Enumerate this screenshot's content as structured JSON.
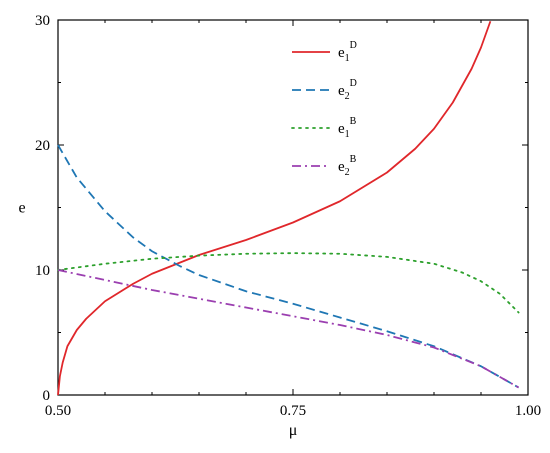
{
  "chart_data": {
    "type": "line",
    "title": "",
    "xlabel": "μ",
    "ylabel": "e",
    "xlim": [
      0.5,
      1.0
    ],
    "ylim": [
      0,
      30
    ],
    "x_ticks": [
      "0.50",
      "0.75",
      "1.00"
    ],
    "y_ticks": [
      "0",
      "10",
      "20",
      "30"
    ],
    "grid": false,
    "legend_position": "top-center",
    "series": [
      {
        "name": "e1D",
        "label_base": "e",
        "label_sub": "1",
        "label_sup": "D",
        "color": "#e0272b",
        "dash": "solid",
        "x": [
          0.5,
          0.502,
          0.505,
          0.51,
          0.52,
          0.53,
          0.55,
          0.58,
          0.6,
          0.63,
          0.65,
          0.7,
          0.75,
          0.8,
          0.85,
          0.88,
          0.9,
          0.92,
          0.94,
          0.95,
          0.96
        ],
        "y": [
          0,
          1.5,
          2.6,
          3.9,
          5.2,
          6.1,
          7.5,
          8.9,
          9.7,
          10.6,
          11.2,
          12.4,
          13.8,
          15.5,
          17.8,
          19.7,
          21.3,
          23.4,
          26.1,
          27.8,
          29.9
        ]
      },
      {
        "name": "e2D",
        "label_base": "e",
        "label_sub": "2",
        "label_sup": "D",
        "color": "#1f77b4",
        "dash": "dashed",
        "x": [
          0.5,
          0.52,
          0.55,
          0.58,
          0.6,
          0.63,
          0.65,
          0.7,
          0.75,
          0.8,
          0.85,
          0.9,
          0.95,
          0.99
        ],
        "y": [
          20,
          17.4,
          14.7,
          12.6,
          11.5,
          10.3,
          9.6,
          8.3,
          7.3,
          6.2,
          5.1,
          3.9,
          2.3,
          0.6
        ]
      },
      {
        "name": "e1B",
        "label_base": "e",
        "label_sub": "1",
        "label_sup": "B",
        "color": "#2ca02c",
        "dash": "dotted",
        "x": [
          0.5,
          0.55,
          0.6,
          0.65,
          0.7,
          0.75,
          0.8,
          0.85,
          0.9,
          0.93,
          0.95,
          0.97,
          0.99
        ],
        "y": [
          10,
          10.5,
          10.9,
          11.15,
          11.3,
          11.35,
          11.3,
          11.05,
          10.5,
          9.8,
          9.1,
          8.1,
          6.6
        ]
      },
      {
        "name": "e2B",
        "label_base": "e",
        "label_sub": "2",
        "label_sup": "B",
        "color": "#9b3fb0",
        "dash": "dashdot",
        "x": [
          0.5,
          0.55,
          0.6,
          0.65,
          0.7,
          0.75,
          0.8,
          0.85,
          0.9,
          0.95,
          0.99
        ],
        "y": [
          10,
          9.2,
          8.4,
          7.7,
          7.0,
          6.3,
          5.6,
          4.8,
          3.8,
          2.3,
          0.6
        ]
      }
    ]
  }
}
